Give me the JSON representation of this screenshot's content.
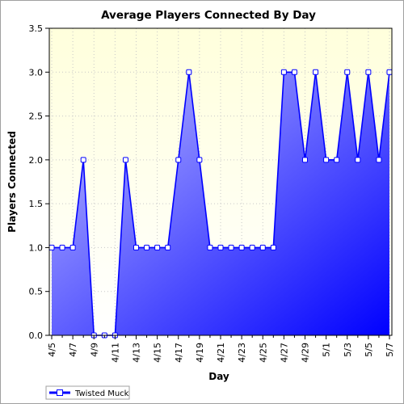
{
  "chart_data": {
    "type": "area",
    "title": "Average Players Connected By Day",
    "xlabel": "Day",
    "ylabel": "Players Connected",
    "ylim": [
      0,
      3.5
    ],
    "yticks": [
      "0.0",
      "0.5",
      "1.0",
      "1.5",
      "2.0",
      "2.5",
      "3.0",
      "3.5"
    ],
    "x": [
      "4/5",
      "4/6",
      "4/7",
      "4/8",
      "4/9",
      "4/10",
      "4/11",
      "4/12",
      "4/13",
      "4/14",
      "4/15",
      "4/16",
      "4/17",
      "4/18",
      "4/19",
      "4/20",
      "4/21",
      "4/22",
      "4/23",
      "4/24",
      "4/25",
      "4/26",
      "4/27",
      "4/28",
      "4/29",
      "4/30",
      "5/1",
      "5/2",
      "5/3",
      "5/4",
      "5/5",
      "5/6",
      "5/7"
    ],
    "xtick_labels": [
      "4/5",
      "4/7",
      "4/9",
      "4/11",
      "4/13",
      "4/15",
      "4/17",
      "4/19",
      "4/21",
      "4/23",
      "4/25",
      "4/27",
      "4/29",
      "5/1",
      "5/3",
      "5/5",
      "5/7"
    ],
    "series": [
      {
        "name": "Twisted Muck",
        "values": [
          1,
          1,
          1,
          2,
          0,
          0,
          0,
          2,
          1,
          1,
          1,
          1,
          2,
          3,
          2,
          1,
          1,
          1,
          1,
          1,
          1,
          1,
          3,
          3,
          2,
          3,
          2,
          2,
          3,
          2,
          3,
          2,
          3
        ],
        "color": "#0000ff"
      }
    ],
    "grid": true,
    "legend": "bottom-left",
    "colors": {
      "plot_background_top": "#ffffdc",
      "plot_background_bottom": "#ffffff",
      "fill_light": "#c0c0ff",
      "fill_dark": "#0000ff",
      "line": "#0000ff"
    }
  }
}
